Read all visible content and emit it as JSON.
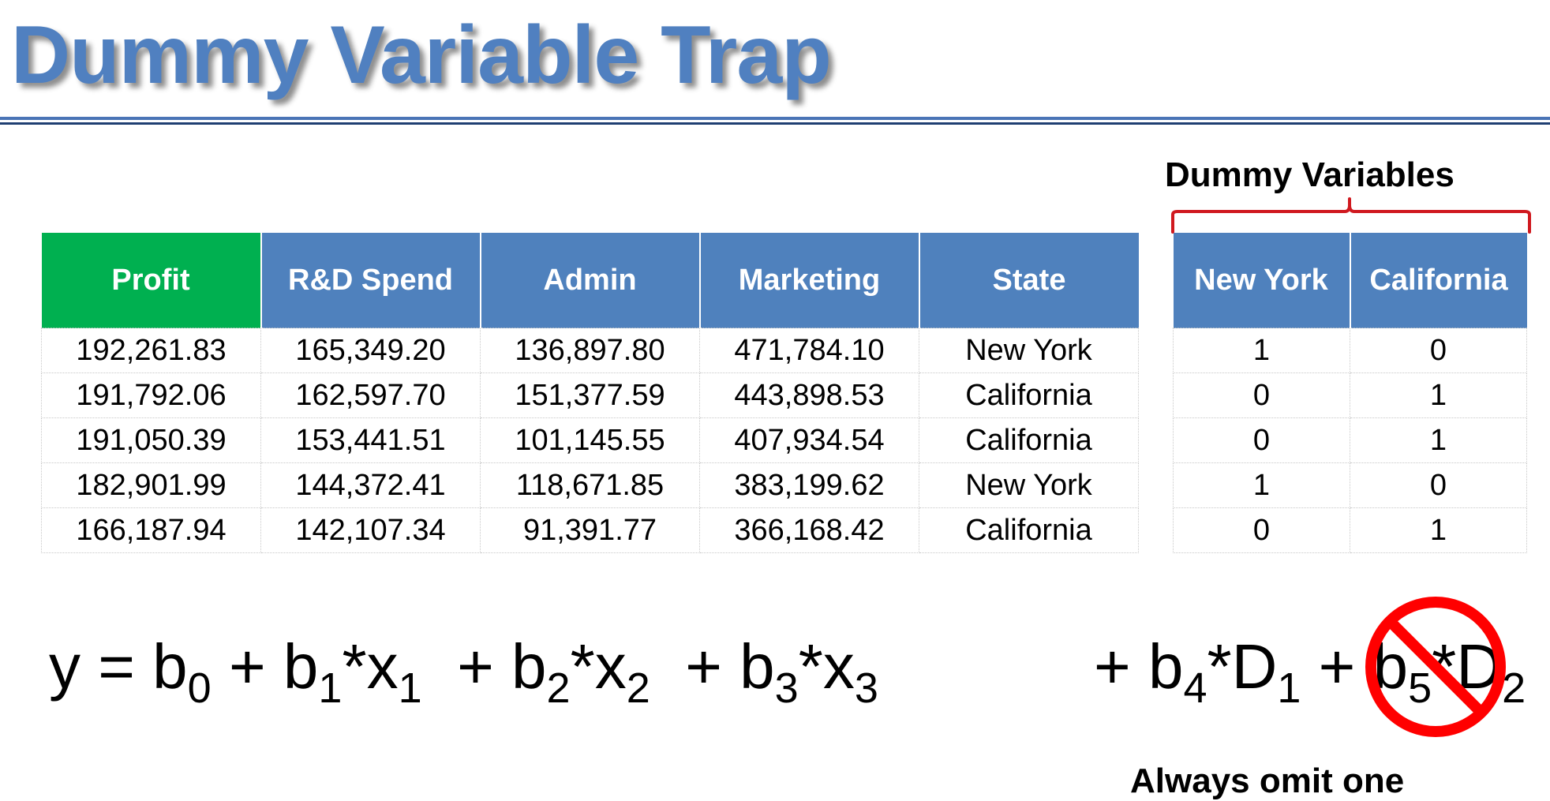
{
  "title": "Dummy Variable Trap",
  "dummy_label": "Dummy Variables",
  "main_table": {
    "headers": [
      "Profit",
      "R&D Spend",
      "Admin",
      "Marketing",
      "State"
    ],
    "rows": [
      [
        "192,261.83",
        "165,349.20",
        "136,897.80",
        "471,784.10",
        "New York"
      ],
      [
        "191,792.06",
        "162,597.70",
        "151,377.59",
        "443,898.53",
        "California"
      ],
      [
        "191,050.39",
        "153,441.51",
        "101,145.55",
        "407,934.54",
        "California"
      ],
      [
        "182,901.99",
        "144,372.41",
        "118,671.85",
        "383,199.62",
        "New York"
      ],
      [
        "166,187.94",
        "142,107.34",
        "91,391.77",
        "366,168.42",
        "California"
      ]
    ]
  },
  "dummy_table": {
    "headers": [
      "New York",
      "California"
    ],
    "rows": [
      [
        "1",
        "0"
      ],
      [
        "0",
        "1"
      ],
      [
        "0",
        "1"
      ],
      [
        "1",
        "0"
      ],
      [
        "0",
        "1"
      ]
    ]
  },
  "equation_left": {
    "parts": [
      {
        "t": "y = b"
      },
      {
        "sub": "0"
      },
      {
        "t": " + b"
      },
      {
        "sub": "1"
      },
      {
        "t": "*x"
      },
      {
        "sub": "1"
      },
      {
        "t": "  + b"
      },
      {
        "sub": "2"
      },
      {
        "t": "*x"
      },
      {
        "sub": "2"
      },
      {
        "t": "  + b"
      },
      {
        "sub": "3"
      },
      {
        "t": "*x"
      },
      {
        "sub": "3"
      }
    ]
  },
  "equation_right": {
    "parts": [
      {
        "t": "+ b"
      },
      {
        "sub": "4"
      },
      {
        "t": "*D"
      },
      {
        "sub": "1"
      },
      {
        "t": " + b"
      },
      {
        "sub": "5"
      },
      {
        "t": "*D"
      },
      {
        "sub": "2"
      }
    ]
  },
  "footnote": "Always omit one",
  "colors": {
    "title": "#5080c0",
    "header_blue": "#4f81bd",
    "header_green": "#00b050",
    "brace_red": "#d0191f",
    "no_sign_red": "#ff0000"
  },
  "icons": {
    "prohibition": "no-sign-icon"
  }
}
